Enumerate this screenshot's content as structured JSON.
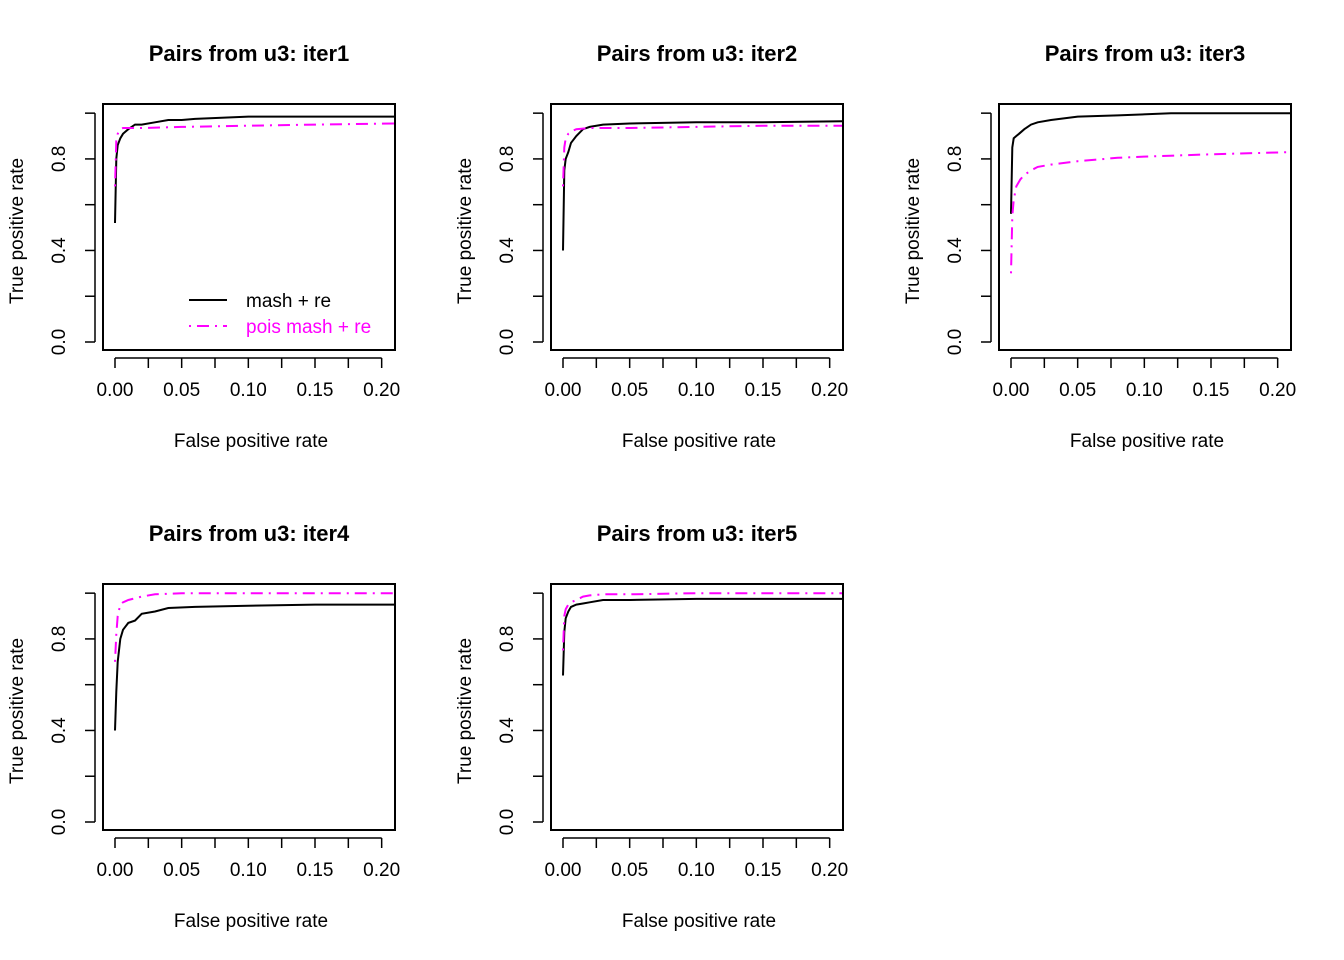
{
  "chart_data": [
    {
      "type": "line",
      "title": "Pairs from u3: iter1",
      "xlabel": "False positive rate",
      "ylabel": "True positive rate",
      "xlim": [
        0,
        0.21
      ],
      "ylim": [
        0,
        1.04
      ],
      "xticks": [
        "0.00",
        "0.05",
        "0.10",
        "0.15",
        "0.20"
      ],
      "yticks": [
        "0.0",
        "0.4",
        "0.8"
      ],
      "grid": false,
      "legend": {
        "position": "bottom-right",
        "entries": [
          {
            "label": "mash + re",
            "color": "#000000",
            "dash": "solid"
          },
          {
            "label": "pois mash + re",
            "color": "#ff00ff",
            "dash": "dotdash"
          }
        ]
      },
      "series": [
        {
          "name": "mash + re",
          "color": "#000000",
          "dash": "solid",
          "x": [
            0.0,
            0.001,
            0.002,
            0.004,
            0.006,
            0.01,
            0.015,
            0.02,
            0.03,
            0.04,
            0.05,
            0.06,
            0.08,
            0.1,
            0.15,
            0.21
          ],
          "y": [
            0.52,
            0.8,
            0.86,
            0.89,
            0.91,
            0.93,
            0.95,
            0.95,
            0.96,
            0.97,
            0.97,
            0.975,
            0.98,
            0.985,
            0.985,
            0.985
          ]
        },
        {
          "name": "pois mash + re",
          "color": "#ff00ff",
          "dash": "dotdash",
          "x": [
            0.0,
            0.001,
            0.002,
            0.004,
            0.006,
            0.01,
            0.02,
            0.05,
            0.1,
            0.15,
            0.21
          ],
          "y": [
            0.68,
            0.88,
            0.91,
            0.93,
            0.935,
            0.935,
            0.935,
            0.94,
            0.945,
            0.95,
            0.955
          ]
        }
      ]
    },
    {
      "type": "line",
      "title": "Pairs from u3: iter2",
      "xlabel": "False positive rate",
      "ylabel": "True positive rate",
      "xlim": [
        0,
        0.21
      ],
      "ylim": [
        0,
        1.04
      ],
      "xticks": [
        "0.00",
        "0.05",
        "0.10",
        "0.15",
        "0.20"
      ],
      "yticks": [
        "0.0",
        "0.4",
        "0.8"
      ],
      "grid": false,
      "legend": null,
      "series": [
        {
          "name": "mash + re",
          "color": "#000000",
          "dash": "solid",
          "x": [
            0.0,
            0.001,
            0.002,
            0.004,
            0.006,
            0.01,
            0.015,
            0.02,
            0.03,
            0.05,
            0.1,
            0.15,
            0.21
          ],
          "y": [
            0.4,
            0.75,
            0.8,
            0.83,
            0.87,
            0.9,
            0.93,
            0.94,
            0.95,
            0.955,
            0.96,
            0.96,
            0.965
          ]
        },
        {
          "name": "pois mash + re",
          "color": "#ff00ff",
          "dash": "dotdash",
          "x": [
            0.0,
            0.001,
            0.002,
            0.004,
            0.006,
            0.01,
            0.02,
            0.05,
            0.1,
            0.15,
            0.21
          ],
          "y": [
            0.68,
            0.85,
            0.89,
            0.91,
            0.92,
            0.93,
            0.935,
            0.935,
            0.94,
            0.945,
            0.945
          ]
        }
      ]
    },
    {
      "type": "line",
      "title": "Pairs from u3: iter3",
      "xlabel": "False positive rate",
      "ylabel": "True positive rate",
      "xlim": [
        0,
        0.21
      ],
      "ylim": [
        0,
        1.04
      ],
      "xticks": [
        "0.00",
        "0.05",
        "0.10",
        "0.15",
        "0.20"
      ],
      "yticks": [
        "0.0",
        "0.4",
        "0.8"
      ],
      "grid": false,
      "legend": null,
      "series": [
        {
          "name": "mash + re",
          "color": "#000000",
          "dash": "solid",
          "x": [
            0.0,
            0.001,
            0.002,
            0.004,
            0.006,
            0.01,
            0.015,
            0.02,
            0.03,
            0.05,
            0.08,
            0.12,
            0.21
          ],
          "y": [
            0.56,
            0.85,
            0.89,
            0.9,
            0.91,
            0.93,
            0.95,
            0.96,
            0.97,
            0.985,
            0.99,
            1.0,
            1.0
          ]
        },
        {
          "name": "pois mash + re",
          "color": "#ff00ff",
          "dash": "dotdash",
          "x": [
            0.0,
            0.001,
            0.002,
            0.004,
            0.007,
            0.01,
            0.015,
            0.02,
            0.03,
            0.05,
            0.08,
            0.1,
            0.15,
            0.21
          ],
          "y": [
            0.3,
            0.55,
            0.62,
            0.68,
            0.71,
            0.73,
            0.75,
            0.765,
            0.775,
            0.79,
            0.805,
            0.81,
            0.82,
            0.83
          ]
        }
      ]
    },
    {
      "type": "line",
      "title": "Pairs from u3: iter4",
      "xlabel": "False positive rate",
      "ylabel": "True positive rate",
      "xlim": [
        0,
        0.21
      ],
      "ylim": [
        0,
        1.04
      ],
      "xticks": [
        "0.00",
        "0.05",
        "0.10",
        "0.15",
        "0.20"
      ],
      "yticks": [
        "0.0",
        "0.4",
        "0.8"
      ],
      "grid": false,
      "legend": null,
      "series": [
        {
          "name": "mash + re",
          "color": "#000000",
          "dash": "solid",
          "x": [
            0.0,
            0.001,
            0.002,
            0.004,
            0.006,
            0.01,
            0.015,
            0.02,
            0.03,
            0.04,
            0.06,
            0.1,
            0.15,
            0.21
          ],
          "y": [
            0.4,
            0.57,
            0.7,
            0.8,
            0.84,
            0.87,
            0.88,
            0.91,
            0.92,
            0.935,
            0.94,
            0.945,
            0.95,
            0.95
          ]
        },
        {
          "name": "pois mash + re",
          "color": "#ff00ff",
          "dash": "dotdash",
          "x": [
            0.0,
            0.001,
            0.002,
            0.004,
            0.006,
            0.01,
            0.02,
            0.03,
            0.05,
            0.1,
            0.21
          ],
          "y": [
            0.7,
            0.82,
            0.9,
            0.95,
            0.96,
            0.97,
            0.985,
            0.995,
            1.0,
            1.0,
            1.0
          ]
        }
      ]
    },
    {
      "type": "line",
      "title": "Pairs from u3: iter5",
      "xlabel": "False positive rate",
      "ylabel": "True positive rate",
      "xlim": [
        0,
        0.21
      ],
      "ylim": [
        0,
        1.04
      ],
      "xticks": [
        "0.00",
        "0.05",
        "0.10",
        "0.15",
        "0.20"
      ],
      "yticks": [
        "0.0",
        "0.4",
        "0.8"
      ],
      "grid": false,
      "legend": null,
      "series": [
        {
          "name": "mash + re",
          "color": "#000000",
          "dash": "solid",
          "x": [
            0.0,
            0.001,
            0.002,
            0.004,
            0.006,
            0.01,
            0.015,
            0.02,
            0.03,
            0.05,
            0.1,
            0.21
          ],
          "y": [
            0.64,
            0.83,
            0.89,
            0.92,
            0.94,
            0.95,
            0.955,
            0.96,
            0.97,
            0.97,
            0.975,
            0.975
          ]
        },
        {
          "name": "pois mash + re",
          "color": "#ff00ff",
          "dash": "dotdash",
          "x": [
            0.0,
            0.001,
            0.002,
            0.004,
            0.006,
            0.01,
            0.015,
            0.02,
            0.03,
            0.05,
            0.1,
            0.21
          ],
          "y": [
            0.75,
            0.9,
            0.93,
            0.95,
            0.96,
            0.97,
            0.985,
            0.99,
            0.995,
            0.995,
            1.0,
            1.0
          ]
        }
      ]
    }
  ]
}
